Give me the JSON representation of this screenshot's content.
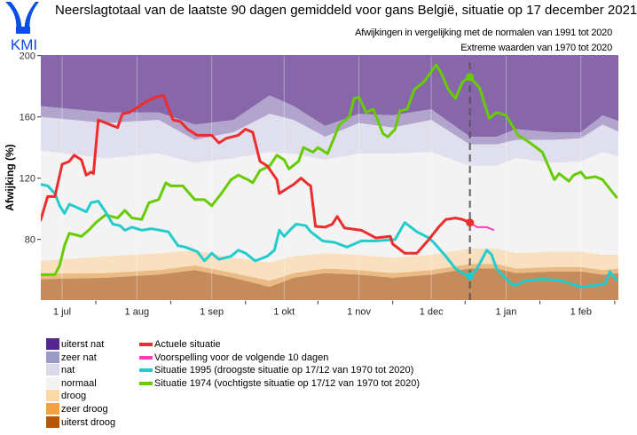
{
  "logo": {
    "text": "KMI",
    "color": "#0a4ee6"
  },
  "header": {
    "title": "Neerslagtotaal van de laatste 90 dagen gemiddeld voor gans België, situatie op 17 december 2021",
    "subtitle1": "Afwijkingen in vergelijking met de normalen van 1991 tot 2020",
    "subtitle2": "Extreme waarden van 1970 tot 2020"
  },
  "legend": {
    "categories": [
      {
        "label": "uiterst nat",
        "color": "#54278f"
      },
      {
        "label": "zeer nat",
        "color": "#9e9ac8"
      },
      {
        "label": "nat",
        "color": "#dadaeb"
      },
      {
        "label": "normaal",
        "color": "#f2f2f2"
      },
      {
        "label": "droog",
        "color": "#fdd9a8"
      },
      {
        "label": "zeer droog",
        "color": "#f1a340"
      },
      {
        "label": "uiterst droog",
        "color": "#b35806"
      }
    ],
    "lines": [
      {
        "label": "Actuele situatie",
        "color": "#ee2c2c"
      },
      {
        "label": "Voorspelling voor de volgende 10 dagen",
        "color": "#ff3dbb"
      },
      {
        "label": "Situatie 1995 (droogste situatie op 17/12 van 1970 tot 2020)",
        "color": "#22cccc"
      },
      {
        "label": "Situatie 1974 (vochtigste situatie op 17/12 van 1970 tot 2020)",
        "color": "#66cc00"
      }
    ]
  },
  "chart_data": {
    "type": "line",
    "ylabel": "Afwijking (%)",
    "xlabel": "",
    "ylim": [
      40,
      200
    ],
    "xlim": [
      "2021-06-22",
      "2022-02-17"
    ],
    "yticks": [
      80,
      120,
      160,
      200
    ],
    "xticks": [
      {
        "date": "2021-07-01",
        "label": "1 jul"
      },
      {
        "date": "2021-08-01",
        "label": "1 aug"
      },
      {
        "date": "2021-09-01",
        "label": "1 sep"
      },
      {
        "date": "2021-10-01",
        "label": "1 okt"
      },
      {
        "date": "2021-11-01",
        "label": "1 nov"
      },
      {
        "date": "2021-12-01",
        "label": "1 dec"
      },
      {
        "date": "2022-01-01",
        "label": "1 jan"
      },
      {
        "date": "2022-02-01",
        "label": "1 feb"
      }
    ],
    "current_date": "2021-12-17",
    "bands": {
      "fill_colors": [
        "#8767a9",
        "#b1a4cd",
        "#e0dfee",
        "#f3f3f3",
        "#f8e0c0",
        "#ebbb84",
        "#c58b5a"
      ],
      "dates": [
        "2021-06-22",
        "2021-07-19",
        "2021-08-10",
        "2021-08-25",
        "2021-09-10",
        "2021-09-25",
        "2021-10-05",
        "2021-10-18",
        "2021-11-01",
        "2021-11-15",
        "2021-12-01",
        "2021-12-17",
        "2021-12-28",
        "2022-01-05",
        "2022-01-20",
        "2022-02-01",
        "2022-02-10",
        "2022-02-17"
      ],
      "boundaries": {
        "uiterst_nat_zeer_nat": [
          167,
          163,
          163,
          155,
          158,
          174,
          167,
          154,
          162,
          161,
          165,
          147,
          147,
          152,
          150,
          150,
          161,
          157
        ],
        "zeer_nat_nat": [
          160,
          156,
          158,
          145,
          150,
          162,
          158,
          147,
          156,
          153,
          158,
          142,
          142,
          145,
          145,
          146,
          155,
          150
        ],
        "nat_normaal": [
          138,
          133,
          136,
          130,
          133,
          137,
          136,
          132,
          136,
          136,
          137,
          128,
          128,
          133,
          130,
          131,
          137,
          134
        ],
        "normaal_droog": [
          66,
          69,
          71,
          73,
          68,
          65,
          69,
          71,
          70,
          68,
          70,
          74,
          74,
          71,
          72,
          72,
          70,
          70
        ],
        "droog_zeer_droog": [
          57.6,
          58,
          60,
          63,
          58,
          53,
          58,
          61,
          60,
          58,
          60,
          64,
          64,
          61,
          62,
          62,
          60,
          61
        ],
        "zeer_droog_uiterst_droog": [
          54,
          55,
          57,
          60,
          55,
          49,
          55,
          58,
          57,
          55,
          57,
          61,
          61,
          58,
          59,
          59,
          57,
          58
        ]
      }
    },
    "series": [
      {
        "name": "Actuele situatie",
        "color": "#ee2c2c",
        "points": [
          [
            "2021-06-22",
            92
          ],
          [
            "2021-06-25",
            108
          ],
          [
            "2021-06-28",
            108
          ],
          [
            "2021-07-01",
            129
          ],
          [
            "2021-07-04",
            131
          ],
          [
            "2021-07-06",
            135
          ],
          [
            "2021-07-09",
            132
          ],
          [
            "2021-07-11",
            122
          ],
          [
            "2021-07-13",
            124
          ],
          [
            "2021-07-14",
            123
          ],
          [
            "2021-07-16",
            158
          ],
          [
            "2021-07-24",
            153
          ],
          [
            "2021-07-26",
            162
          ],
          [
            "2021-07-29",
            163
          ],
          [
            "2021-08-03",
            168
          ],
          [
            "2021-08-06",
            171
          ],
          [
            "2021-08-09",
            173
          ],
          [
            "2021-08-12",
            174
          ],
          [
            "2021-08-16",
            158
          ],
          [
            "2021-08-19",
            157
          ],
          [
            "2021-08-22",
            152
          ],
          [
            "2021-08-26",
            148
          ],
          [
            "2021-09-01",
            148
          ],
          [
            "2021-09-04",
            143
          ],
          [
            "2021-09-07",
            146
          ],
          [
            "2021-09-12",
            148
          ],
          [
            "2021-09-15",
            152
          ],
          [
            "2021-09-18",
            150
          ],
          [
            "2021-09-21",
            131
          ],
          [
            "2021-09-24",
            128
          ],
          [
            "2021-09-28",
            119
          ],
          [
            "2021-09-29",
            110
          ],
          [
            "2021-10-02",
            113
          ],
          [
            "2021-10-05",
            116
          ],
          [
            "2021-10-08",
            120
          ],
          [
            "2021-10-11",
            116
          ],
          [
            "2021-10-12",
            115
          ],
          [
            "2021-10-14",
            88.5
          ],
          [
            "2021-10-18",
            88
          ],
          [
            "2021-10-21",
            90
          ],
          [
            "2021-10-23",
            95
          ],
          [
            "2021-10-26",
            87.5
          ],
          [
            "2021-11-02",
            86
          ],
          [
            "2021-11-08",
            81
          ],
          [
            "2021-11-14",
            82
          ],
          [
            "2021-11-15",
            77
          ],
          [
            "2021-11-20",
            71
          ],
          [
            "2021-11-25",
            71
          ],
          [
            "2021-11-30",
            80
          ],
          [
            "2021-12-04",
            88
          ],
          [
            "2021-12-07",
            93
          ],
          [
            "2021-12-11",
            94
          ],
          [
            "2021-12-14",
            93
          ],
          [
            "2021-12-17",
            91
          ]
        ]
      },
      {
        "name": "Voorspelling voor de volgende 10 dagen",
        "color": "#ff3dbb",
        "points": [
          [
            "2021-12-17",
            91
          ],
          [
            "2021-12-20",
            88
          ],
          [
            "2021-12-24",
            88
          ],
          [
            "2021-12-27",
            86
          ]
        ]
      },
      {
        "name": "Situatie 1995",
        "color": "#22cccc",
        "points": [
          [
            "2021-06-22",
            116
          ],
          [
            "2021-06-25",
            115
          ],
          [
            "2021-06-28",
            110
          ],
          [
            "2021-06-30",
            102
          ],
          [
            "2021-07-02",
            97
          ],
          [
            "2021-07-04",
            103
          ],
          [
            "2021-07-07",
            101
          ],
          [
            "2021-07-11",
            98
          ],
          [
            "2021-07-13",
            104
          ],
          [
            "2021-07-16",
            105
          ],
          [
            "2021-07-19",
            98
          ],
          [
            "2021-07-22",
            90
          ],
          [
            "2021-07-25",
            89
          ],
          [
            "2021-07-27",
            86
          ],
          [
            "2021-07-30",
            88
          ],
          [
            "2021-08-03",
            86
          ],
          [
            "2021-08-07",
            87
          ],
          [
            "2021-08-14",
            85
          ],
          [
            "2021-08-18",
            76
          ],
          [
            "2021-08-21",
            75
          ],
          [
            "2021-08-26",
            72
          ],
          [
            "2021-08-29",
            66
          ],
          [
            "2021-09-01",
            71
          ],
          [
            "2021-09-04",
            67
          ],
          [
            "2021-09-09",
            69
          ],
          [
            "2021-09-12",
            73
          ],
          [
            "2021-09-15",
            71
          ],
          [
            "2021-09-19",
            66
          ],
          [
            "2021-09-24",
            69
          ],
          [
            "2021-09-27",
            73
          ],
          [
            "2021-09-29",
            86
          ],
          [
            "2021-10-01",
            82
          ],
          [
            "2021-10-04",
            87
          ],
          [
            "2021-10-06",
            90
          ],
          [
            "2021-10-10",
            89
          ],
          [
            "2021-10-12",
            85
          ],
          [
            "2021-10-17",
            79
          ],
          [
            "2021-10-22",
            78
          ],
          [
            "2021-10-27",
            75
          ],
          [
            "2021-11-02",
            79
          ],
          [
            "2021-11-08",
            79
          ],
          [
            "2021-11-16",
            80
          ],
          [
            "2021-11-20",
            91
          ],
          [
            "2021-11-25",
            85
          ],
          [
            "2021-11-30",
            81
          ],
          [
            "2021-12-02",
            78
          ],
          [
            "2021-12-07",
            69
          ],
          [
            "2021-12-11",
            61
          ],
          [
            "2021-12-14",
            58
          ],
          [
            "2021-12-17",
            56
          ],
          [
            "2021-12-20",
            61
          ],
          [
            "2021-12-24",
            73
          ],
          [
            "2021-12-26",
            70
          ],
          [
            "2021-12-28",
            61
          ],
          [
            "2022-01-03",
            51
          ],
          [
            "2022-01-05",
            50
          ],
          [
            "2022-01-09",
            53
          ],
          [
            "2022-01-16",
            54
          ],
          [
            "2022-01-24",
            53
          ],
          [
            "2022-02-01",
            49
          ],
          [
            "2022-02-07",
            50
          ],
          [
            "2022-02-11",
            51
          ],
          [
            "2022-02-13",
            59
          ],
          [
            "2022-02-16",
            53
          ]
        ]
      },
      {
        "name": "Situatie 1974",
        "color": "#66cc00",
        "points": [
          [
            "2021-06-22",
            57
          ],
          [
            "2021-06-28",
            57
          ],
          [
            "2021-06-30",
            63
          ],
          [
            "2021-07-02",
            76
          ],
          [
            "2021-07-04",
            84
          ],
          [
            "2021-07-09",
            82
          ],
          [
            "2021-07-12",
            86
          ],
          [
            "2021-07-15",
            91
          ],
          [
            "2021-07-19",
            96
          ],
          [
            "2021-07-24",
            94
          ],
          [
            "2021-07-27",
            99
          ],
          [
            "2021-07-30",
            94
          ],
          [
            "2021-08-03",
            93
          ],
          [
            "2021-08-06",
            104
          ],
          [
            "2021-08-10",
            106
          ],
          [
            "2021-08-13",
            117
          ],
          [
            "2021-08-15",
            115
          ],
          [
            "2021-08-20",
            115
          ],
          [
            "2021-08-25",
            106
          ],
          [
            "2021-08-29",
            106
          ],
          [
            "2021-09-01",
            102
          ],
          [
            "2021-09-05",
            110
          ],
          [
            "2021-09-09",
            119
          ],
          [
            "2021-09-12",
            122
          ],
          [
            "2021-09-16",
            119
          ],
          [
            "2021-09-18",
            117
          ],
          [
            "2021-09-21",
            125
          ],
          [
            "2021-09-25",
            128
          ],
          [
            "2021-09-28",
            135
          ],
          [
            "2021-10-01",
            132
          ],
          [
            "2021-10-03",
            126
          ],
          [
            "2021-10-07",
            131
          ],
          [
            "2021-10-09",
            140
          ],
          [
            "2021-10-13",
            137
          ],
          [
            "2021-10-15",
            140
          ],
          [
            "2021-10-19",
            136
          ],
          [
            "2021-10-24",
            155
          ],
          [
            "2021-10-28",
            160
          ],
          [
            "2021-10-30",
            172
          ],
          [
            "2021-11-01",
            173
          ],
          [
            "2021-11-04",
            163
          ],
          [
            "2021-11-07",
            165
          ],
          [
            "2021-11-11",
            149
          ],
          [
            "2021-11-13",
            147
          ],
          [
            "2021-11-16",
            152
          ],
          [
            "2021-11-18",
            164
          ],
          [
            "2021-11-21",
            165
          ],
          [
            "2021-11-24",
            178
          ],
          [
            "2021-11-28",
            183
          ],
          [
            "2021-12-03",
            194
          ],
          [
            "2021-12-05",
            189
          ],
          [
            "2021-12-08",
            178
          ],
          [
            "2021-12-11",
            172
          ],
          [
            "2021-12-14",
            183
          ],
          [
            "2021-12-17",
            186
          ],
          [
            "2021-12-21",
            179
          ],
          [
            "2021-12-25",
            159
          ],
          [
            "2021-12-28",
            163
          ],
          [
            "2022-01-01",
            161
          ],
          [
            "2022-01-06",
            148
          ],
          [
            "2022-01-11",
            143
          ],
          [
            "2022-01-16",
            137
          ],
          [
            "2022-01-21",
            119
          ],
          [
            "2022-01-23",
            123
          ],
          [
            "2022-01-27",
            118
          ],
          [
            "2022-01-29",
            122
          ],
          [
            "2022-02-01",
            124
          ],
          [
            "2022-02-03",
            120
          ],
          [
            "2022-02-07",
            121
          ],
          [
            "2022-02-10",
            119
          ],
          [
            "2022-02-16",
            107
          ]
        ]
      }
    ]
  }
}
